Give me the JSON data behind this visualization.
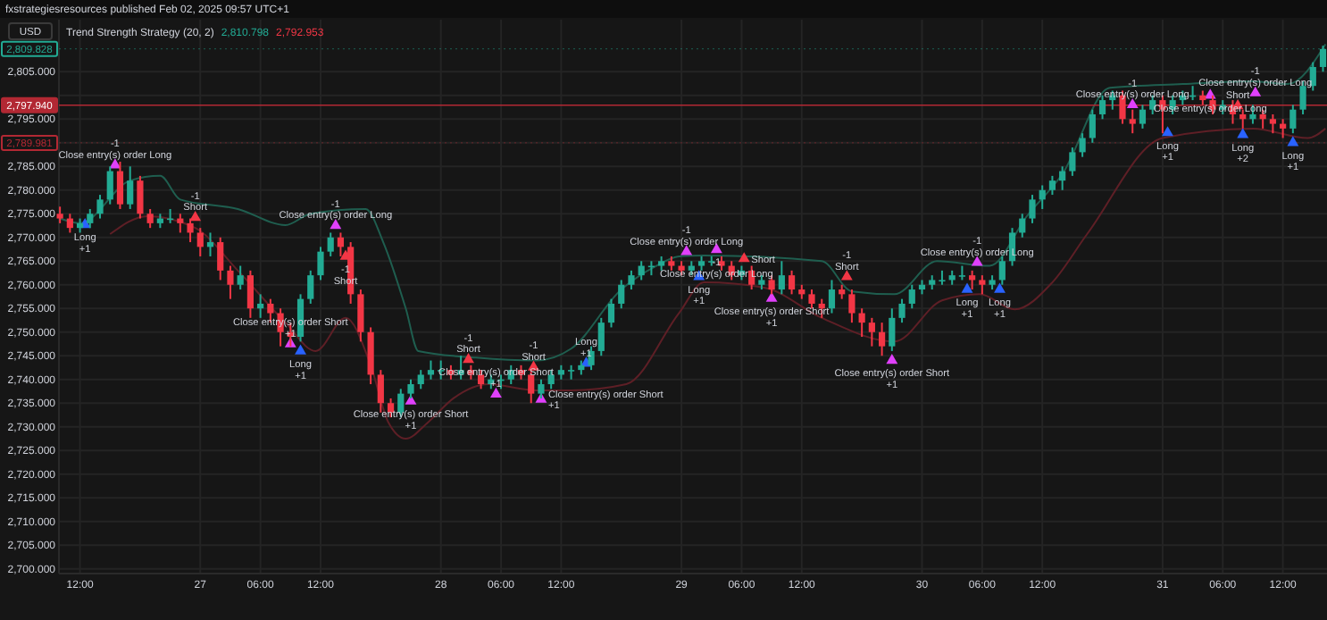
{
  "chart_data": {
    "type": "candlestick",
    "title": "fxstrategiesresources published Feb 02, 2025 09:57 UTC+1",
    "subtitle": "Trend Strength Strategy (20, 2)",
    "ylabel": "USD",
    "x": [
      "2025-01-26T10:00",
      "2025-01-26T11:00",
      "2025-01-26T12:00",
      "2025-01-26T13:00",
      "2025-01-26T14:00",
      "2025-01-26T15:00",
      "2025-01-26T16:00",
      "2025-01-26T17:00",
      "2025-01-26T18:00",
      "2025-01-26T19:00",
      "2025-01-26T20:00",
      "2025-01-26T21:00",
      "2025-01-26T22:00",
      "2025-01-26T23:00",
      "2025-01-27T00:00",
      "2025-01-27T01:00",
      "2025-01-27T02:00",
      "2025-01-27T03:00",
      "2025-01-27T04:00",
      "2025-01-27T05:00",
      "2025-01-27T06:00",
      "2025-01-27T07:00",
      "2025-01-27T08:00",
      "2025-01-27T09:00",
      "2025-01-27T10:00",
      "2025-01-27T11:00",
      "2025-01-27T12:00",
      "2025-01-27T13:00",
      "2025-01-27T14:00",
      "2025-01-27T15:00",
      "2025-01-27T16:00",
      "2025-01-27T17:00",
      "2025-01-27T18:00",
      "2025-01-27T19:00",
      "2025-01-27T20:00",
      "2025-01-27T21:00",
      "2025-01-27T22:00",
      "2025-01-27T23:00",
      "2025-01-28T00:00",
      "2025-01-28T01:00",
      "2025-01-28T02:00",
      "2025-01-28T03:00",
      "2025-01-28T04:00",
      "2025-01-28T05:00",
      "2025-01-28T06:00",
      "2025-01-28T07:00",
      "2025-01-28T08:00",
      "2025-01-28T09:00",
      "2025-01-28T10:00",
      "2025-01-28T11:00",
      "2025-01-28T12:00",
      "2025-01-28T13:00",
      "2025-01-28T14:00",
      "2025-01-28T15:00",
      "2025-01-28T16:00",
      "2025-01-28T17:00",
      "2025-01-28T18:00",
      "2025-01-28T19:00",
      "2025-01-28T20:00",
      "2025-01-28T21:00",
      "2025-01-28T22:00",
      "2025-01-28T23:00",
      "2025-01-29T00:00",
      "2025-01-29T01:00",
      "2025-01-29T02:00",
      "2025-01-29T03:00",
      "2025-01-29T04:00",
      "2025-01-29T05:00",
      "2025-01-29T06:00",
      "2025-01-29T07:00",
      "2025-01-29T08:00",
      "2025-01-29T09:00",
      "2025-01-29T10:00",
      "2025-01-29T11:00",
      "2025-01-29T12:00",
      "2025-01-29T13:00",
      "2025-01-29T14:00",
      "2025-01-29T15:00",
      "2025-01-29T16:00",
      "2025-01-29T17:00",
      "2025-01-29T18:00",
      "2025-01-29T19:00",
      "2025-01-29T20:00",
      "2025-01-29T21:00",
      "2025-01-29T22:00",
      "2025-01-29T23:00",
      "2025-01-30T00:00",
      "2025-01-30T01:00",
      "2025-01-30T02:00",
      "2025-01-30T03:00",
      "2025-01-30T04:00",
      "2025-01-30T05:00",
      "2025-01-30T06:00",
      "2025-01-30T07:00",
      "2025-01-30T08:00",
      "2025-01-30T09:00",
      "2025-01-30T10:00",
      "2025-01-30T11:00",
      "2025-01-30T12:00",
      "2025-01-30T13:00",
      "2025-01-30T14:00",
      "2025-01-30T15:00",
      "2025-01-30T16:00",
      "2025-01-30T17:00",
      "2025-01-30T18:00",
      "2025-01-30T19:00",
      "2025-01-30T20:00",
      "2025-01-30T21:00",
      "2025-01-30T22:00",
      "2025-01-30T23:00",
      "2025-01-31T00:00",
      "2025-01-31T01:00",
      "2025-01-31T02:00",
      "2025-01-31T03:00",
      "2025-01-31T04:00",
      "2025-01-31T05:00",
      "2025-01-31T06:00",
      "2025-01-31T07:00",
      "2025-01-31T08:00",
      "2025-01-31T09:00",
      "2025-01-31T10:00",
      "2025-01-31T11:00",
      "2025-01-31T12:00",
      "2025-01-31T13:00",
      "2025-01-31T14:00",
      "2025-01-31T15:00",
      "2025-01-31T16:00"
    ],
    "ohlc": [
      [
        2775,
        2776.5,
        2773,
        2774
      ],
      [
        2774,
        2775,
        2771,
        2772
      ],
      [
        2772,
        2774,
        2771,
        2773
      ],
      [
        2773,
        2776,
        2772,
        2775
      ],
      [
        2775,
        2779,
        2774,
        2778
      ],
      [
        2778,
        2785,
        2777,
        2784
      ],
      [
        2784,
        2786,
        2776,
        2777
      ],
      [
        2777,
        2785,
        2776,
        2782
      ],
      [
        2782,
        2783,
        2774,
        2775
      ],
      [
        2775,
        2776,
        2772,
        2773
      ],
      [
        2773,
        2775,
        2772,
        2774
      ],
      [
        2774,
        2776,
        2773,
        2774
      ],
      [
        2774,
        2775,
        2771,
        2773
      ],
      [
        2773,
        2774,
        2769,
        2771
      ],
      [
        2771,
        2772,
        2766,
        2768
      ],
      [
        2768,
        2771,
        2766,
        2769
      ],
      [
        2769,
        2770,
        2761,
        2763
      ],
      [
        2763,
        2764,
        2757,
        2760
      ],
      [
        2760,
        2764,
        2759,
        2762
      ],
      [
        2762,
        2763,
        2753,
        2755
      ],
      [
        2755,
        2758,
        2753,
        2756
      ],
      [
        2756,
        2757,
        2752,
        2754
      ],
      [
        2754,
        2755,
        2747,
        2750
      ],
      [
        2750,
        2752,
        2747,
        2749
      ],
      [
        2749,
        2758,
        2748,
        2757
      ],
      [
        2757,
        2763,
        2756,
        2762
      ],
      [
        2762,
        2768,
        2761,
        2767
      ],
      [
        2767,
        2771,
        2766,
        2770
      ],
      [
        2770,
        2771,
        2766,
        2768
      ],
      [
        2768,
        2769,
        2756,
        2758
      ],
      [
        2758,
        2759,
        2748,
        2750
      ],
      [
        2750,
        2751,
        2739,
        2741
      ],
      [
        2741,
        2742,
        2733,
        2735
      ],
      [
        2735,
        2736,
        2732,
        2733
      ],
      [
        2733,
        2738,
        2732,
        2737
      ],
      [
        2737,
        2740,
        2736,
        2739
      ],
      [
        2739,
        2742,
        2738,
        2741
      ],
      [
        2741,
        2744,
        2740,
        2742
      ],
      [
        2742,
        2744,
        2740,
        2742
      ],
      [
        2742,
        2743,
        2740,
        2741
      ],
      [
        2741,
        2745,
        2740,
        2742
      ],
      [
        2742,
        2743,
        2740,
        2741
      ],
      [
        2741,
        2742,
        2738,
        2739
      ],
      [
        2739,
        2741,
        2738,
        2740
      ],
      [
        2740,
        2741,
        2738,
        2740
      ],
      [
        2740,
        2743,
        2739,
        2742
      ],
      [
        2742,
        2743,
        2740,
        2741
      ],
      [
        2741,
        2742,
        2735,
        2737
      ],
      [
        2737,
        2740,
        2736,
        2739
      ],
      [
        2739,
        2742,
        2738,
        2741
      ],
      [
        2741,
        2743,
        2740,
        2742
      ],
      [
        2742,
        2743,
        2740,
        2742
      ],
      [
        2742,
        2744,
        2741,
        2743
      ],
      [
        2743,
        2747,
        2742,
        2746
      ],
      [
        2746,
        2753,
        2745,
        2752
      ],
      [
        2752,
        2757,
        2751,
        2756
      ],
      [
        2756,
        2761,
        2755,
        2760
      ],
      [
        2760,
        2763,
        2759,
        2762
      ],
      [
        2762,
        2765,
        2761,
        2764
      ],
      [
        2764,
        2765,
        2762,
        2764
      ],
      [
        2764,
        2766,
        2763,
        2765
      ],
      [
        2765,
        2766,
        2763,
        2764
      ],
      [
        2764,
        2765,
        2762,
        2763
      ],
      [
        2763,
        2765,
        2762,
        2764
      ],
      [
        2764,
        2766,
        2763,
        2765
      ],
      [
        2765,
        2766,
        2764,
        2765
      ],
      [
        2765,
        2766,
        2763,
        2764
      ],
      [
        2764,
        2765,
        2761,
        2762
      ],
      [
        2762,
        2764,
        2761,
        2763
      ],
      [
        2763,
        2764,
        2759,
        2760
      ],
      [
        2760,
        2762,
        2759,
        2761
      ],
      [
        2761,
        2762,
        2758,
        2759
      ],
      [
        2759,
        2765,
        2758,
        2762
      ],
      [
        2762,
        2763,
        2758,
        2759
      ],
      [
        2759,
        2760,
        2757,
        2758
      ],
      [
        2758,
        2759,
        2755,
        2756
      ],
      [
        2756,
        2757,
        2753,
        2755
      ],
      [
        2755,
        2761,
        2754,
        2759
      ],
      [
        2759,
        2760,
        2757,
        2758
      ],
      [
        2758,
        2759,
        2752,
        2754
      ],
      [
        2754,
        2755,
        2749,
        2752
      ],
      [
        2752,
        2753,
        2747,
        2750
      ],
      [
        2750,
        2752,
        2745,
        2747
      ],
      [
        2747,
        2755,
        2746,
        2753
      ],
      [
        2753,
        2757,
        2752,
        2756
      ],
      [
        2756,
        2760,
        2755,
        2759
      ],
      [
        2759,
        2761,
        2758,
        2760
      ],
      [
        2760,
        2762,
        2759,
        2761
      ],
      [
        2761,
        2763,
        2760,
        2761
      ],
      [
        2761,
        2763,
        2760,
        2762
      ],
      [
        2762,
        2764,
        2761,
        2762
      ],
      [
        2762,
        2763,
        2759,
        2761
      ],
      [
        2761,
        2762,
        2758,
        2760
      ],
      [
        2760,
        2762,
        2759,
        2761
      ],
      [
        2761,
        2766,
        2760,
        2765
      ],
      [
        2765,
        2772,
        2764,
        2771
      ],
      [
        2771,
        2775,
        2770,
        2774
      ],
      [
        2774,
        2779,
        2773,
        2778
      ],
      [
        2778,
        2781,
        2776,
        2780
      ],
      [
        2780,
        2783,
        2779,
        2782
      ],
      [
        2782,
        2785,
        2780,
        2784
      ],
      [
        2784,
        2789,
        2783,
        2788
      ],
      [
        2788,
        2792,
        2787,
        2791
      ],
      [
        2791,
        2797,
        2790,
        2796
      ],
      [
        2796,
        2800,
        2795,
        2799
      ],
      [
        2799,
        2801,
        2797,
        2800
      ],
      [
        2800,
        2801,
        2794,
        2795
      ],
      [
        2795,
        2797,
        2792,
        2794
      ],
      [
        2794,
        2798,
        2793,
        2797
      ],
      [
        2797,
        2800,
        2796,
        2799
      ],
      [
        2799,
        2800,
        2792,
        2797
      ],
      [
        2797,
        2800,
        2796,
        2799
      ],
      [
        2799,
        2801,
        2798,
        2800
      ],
      [
        2800,
        2802,
        2799,
        2800
      ],
      [
        2800,
        2801,
        2798,
        2799
      ],
      [
        2799,
        2800,
        2796,
        2797
      ],
      [
        2797,
        2799,
        2796,
        2798
      ],
      [
        2798,
        2799,
        2794,
        2796
      ],
      [
        2796,
        2797,
        2793,
        2795
      ],
      [
        2795,
        2798,
        2794,
        2796
      ],
      [
        2796,
        2797,
        2793,
        2795
      ],
      [
        2795,
        2796,
        2792,
        2794
      ],
      [
        2794,
        2795,
        2791,
        2793
      ],
      [
        2793,
        2798,
        2792,
        2797
      ],
      [
        2797,
        2803,
        2796,
        2802
      ],
      [
        2802,
        2807,
        2801,
        2806
      ],
      [
        2806,
        2810.5,
        2805,
        2809.8
      ]
    ],
    "series": [
      {
        "type": "line",
        "color": "#1f5e4f",
        "x": [
          "2025-01-26T10:00",
          "2025-01-26T12:00",
          "2025-01-26T17:00",
          "2025-01-26T20:00",
          "2025-01-26T22:00",
          "2025-01-27T03:45",
          "2025-01-27T08:30",
          "2025-01-27T11:00",
          "2025-01-27T16:30",
          "2025-01-27T18:15",
          "2025-01-27T20:30",
          "2025-01-27T21:45",
          "2025-01-28T03:30",
          "2025-01-28T09:30",
          "2025-01-28T13:00",
          "2025-01-28T18:00",
          "2025-01-28T21:30",
          "2025-01-28T23:45",
          "2025-01-29T02:15",
          "2025-01-29T14:00",
          "2025-01-29T17:00",
          "2025-01-29T21:15",
          "2025-01-30T01:30",
          "2025-01-30T06:45",
          "2025-01-30T10:30",
          "2025-01-30T14:00",
          "2025-01-30T18:45",
          "2025-01-31T02:00",
          "2025-01-31T09:00",
          "2025-01-31T12:30",
          "2025-01-31T16:15"
        ],
        "values": [
          2774,
          2773,
          2782,
          2783,
          2778,
          2776,
          2772.6,
          2775,
          2776,
          2769,
          2755,
          2746,
          2744.6,
          2744,
          2746.5,
          2759,
          2764,
          2766,
          2766.2,
          2765,
          2758.6,
          2758,
          2765,
          2764,
          2774.6,
          2783.4,
          2801.6,
          2802.4,
          2803,
          2802.4,
          2810.8
        ]
      },
      {
        "type": "line",
        "color": "#5e1f26",
        "x": [
          "2025-01-26T15:00",
          "2025-01-26T18:45",
          "2025-01-26T23:30",
          "2025-01-27T03:45",
          "2025-01-27T08:30",
          "2025-01-27T11:30",
          "2025-01-27T14:30",
          "2025-01-27T17:00",
          "2025-01-27T18:45",
          "2025-01-27T20:30",
          "2025-01-27T22:45",
          "2025-01-28T01:15",
          "2025-01-28T04:45",
          "2025-01-28T09:30",
          "2025-01-28T13:00",
          "2025-01-28T18:30",
          "2025-01-28T23:45",
          "2025-01-29T02:15",
          "2025-01-29T08:15",
          "2025-01-29T14:00",
          "2025-01-29T21:15",
          "2025-01-30T02:00",
          "2025-01-30T05:45",
          "2025-01-30T09:15",
          "2025-01-30T13:00",
          "2025-01-30T16:30",
          "2025-01-31T00:00",
          "2025-01-31T09:00",
          "2025-01-31T14:30",
          "2025-01-31T16:15"
        ],
        "values": [
          2770.7,
          2774.5,
          2772,
          2763,
          2752,
          2746,
          2753,
          2743,
          2731,
          2727.5,
          2731,
          2736,
          2739,
          2737.7,
          2737.7,
          2739,
          2754,
          2760.5,
          2759.4,
          2753,
          2748,
          2756.7,
          2758,
          2754.8,
          2760.5,
          2770.8,
          2791,
          2793,
          2791,
          2793
        ]
      },
      {
        "type": "scatter",
        "color": "#2962ff",
        "marker": "triangle",
        "x": [
          "2025-01-26T12:30",
          "2025-01-27T10:00",
          "2025-01-28T14:30",
          "2025-01-29T01:45",
          "2025-01-30T04:30",
          "2025-01-30T07:45",
          "2025-01-31T00:30",
          "2025-01-31T08:00",
          "2025-01-31T13:00"
        ],
        "values": [
          2772.7,
          2746,
          2743.4,
          2761.7,
          2759,
          2759,
          2792.1,
          2791.7,
          2790
        ]
      },
      {
        "type": "scatter",
        "color": "#f23645",
        "marker": "triangle",
        "x": [
          "2025-01-26T23:30",
          "2025-01-27T14:30",
          "2025-01-28T02:45",
          "2025-01-28T09:15",
          "2025-01-29T06:15",
          "2025-01-29T16:30",
          "2025-01-31T07:30"
        ],
        "values": [
          2774.2,
          2766,
          2744.2,
          2742.6,
          2765.5,
          2761.7,
          2797.8
        ]
      },
      {
        "type": "scatter",
        "color": "#e040fb",
        "marker": "triangle",
        "x": [
          "2025-01-26T15:30",
          "2025-01-27T13:30",
          "2025-01-27T09:00",
          "2025-01-27T21:00",
          "2025-01-28T05:30",
          "2025-01-28T10:00",
          "2025-01-29T00:30",
          "2025-01-29T03:30",
          "2025-01-29T09:00",
          "2025-01-29T21:00",
          "2025-01-30T05:30",
          "2025-01-30T21:00",
          "2025-01-31T04:45",
          "2025-01-31T09:15"
        ],
        "values": [
          2785.3,
          2772.5,
          2747.5,
          2735.4,
          2736.9,
          2735.8,
          2767,
          2767.4,
          2757.1,
          2744,
          2764.7,
          2798,
          2800,
          2800.5
        ]
      }
    ],
    "xlim": [
      "2025-01-26T09:54",
      "2025-01-31T16:24"
    ],
    "xticks": [
      {
        "value": "2025-01-26T12:00",
        "label": "12:00"
      },
      {
        "value": "2025-01-27",
        "label": "27"
      },
      {
        "value": "2025-01-27T06:00",
        "label": "06:00"
      },
      {
        "value": "2025-01-27T12:00",
        "label": "12:00"
      },
      {
        "value": "2025-01-28",
        "label": "28"
      },
      {
        "value": "2025-01-28T06:00",
        "label": "06:00"
      },
      {
        "value": "2025-01-28T12:00",
        "label": "12:00"
      },
      {
        "value": "2025-01-29",
        "label": "29"
      },
      {
        "value": "2025-01-29T06:00",
        "label": "06:00"
      },
      {
        "value": "2025-01-29T12:00",
        "label": "12:00"
      },
      {
        "value": "2025-01-30",
        "label": "30"
      },
      {
        "value": "2025-01-30T06:00",
        "label": "06:00"
      },
      {
        "value": "2025-01-30T12:00",
        "label": "12:00"
      },
      {
        "value": "2025-01-31",
        "label": "31"
      },
      {
        "value": "2025-01-31T06:00",
        "label": "06:00"
      },
      {
        "value": "2025-01-31T12:00",
        "label": "12:00"
      }
    ],
    "ylim": [
      2699,
      2816
    ],
    "yticks": [
      {
        "value": 2700,
        "label": "2,700.000"
      },
      {
        "value": 2705,
        "label": "2,705.000"
      },
      {
        "value": 2710,
        "label": "2,710.000"
      },
      {
        "value": 2715,
        "label": "2,715.000"
      },
      {
        "value": 2720,
        "label": "2,720.000"
      },
      {
        "value": 2725,
        "label": "2,725.000"
      },
      {
        "value": 2730,
        "label": "2,730.000"
      },
      {
        "value": 2735,
        "label": "2,735.000"
      },
      {
        "value": 2740,
        "label": "2,740.000"
      },
      {
        "value": 2745,
        "label": "2,745.000"
      },
      {
        "value": 2750,
        "label": "2,750.000"
      },
      {
        "value": 2755,
        "label": "2,755.000"
      },
      {
        "value": 2760,
        "label": "2,760.000"
      },
      {
        "value": 2765,
        "label": "2,765.000"
      },
      {
        "value": 2770,
        "label": "2,770.000"
      },
      {
        "value": 2775,
        "label": "2,775.000"
      },
      {
        "value": 2780,
        "label": "2,780.000"
      },
      {
        "value": 2785,
        "label": "2,785.000"
      },
      {
        "value": 2790,
        "label": null
      },
      {
        "value": 2795,
        "label": "2,795.000"
      },
      {
        "value": 2800,
        "label": null
      },
      {
        "value": 2805,
        "label": "2,805.000"
      }
    ],
    "grid": true,
    "ref_lines": [
      {
        "axis": "y",
        "value": 2809.828,
        "label": "2,809.828",
        "color": "#22ab94",
        "line_style": "dotted"
      },
      {
        "axis": "y",
        "value": 2797.94,
        "label": "2,797.940",
        "color": "#b22833",
        "line_style": "solid"
      },
      {
        "axis": "y",
        "value": 2789.981,
        "label": "2,789.981",
        "color": "#b22833",
        "line_style": "dotted"
      }
    ],
    "annotations": [
      "2,810.798",
      "2,792.953",
      {
        "text": "-1",
        "x": "2025-01-26T15:30",
        "y": 2785.3
      },
      {
        "text": "Close entry(s) order Long",
        "x": "2025-01-26T15:30",
        "y": 2785.3
      },
      {
        "text": "Long",
        "x": "2025-01-26T12:30",
        "y": 2772.7
      },
      {
        "text": "+1",
        "x": "2025-01-26T12:30",
        "y": 2772.7
      },
      {
        "text": "-1",
        "x": "2025-01-26T23:30",
        "y": 2774.2
      },
      {
        "text": "Short",
        "x": "2025-01-26T23:30",
        "y": 2774.2
      },
      {
        "text": "-1",
        "x": "2025-01-27T13:30",
        "y": 2772.5
      },
      {
        "text": "Close entry(s) order Long",
        "x": "2025-01-27T13:30",
        "y": 2772.5
      },
      {
        "text": "-1",
        "x": "2025-01-27T14:30",
        "y": 2766
      },
      {
        "text": "Short",
        "x": "2025-01-27T14:30",
        "y": 2766
      },
      {
        "text": "Long",
        "x": "2025-01-27T10:00",
        "y": 2746
      },
      {
        "text": "+1",
        "x": "2025-01-27T10:00",
        "y": 2746
      },
      {
        "text": "Close entry(s) order Short",
        "x": "2025-01-27T09:00",
        "y": 2747.5
      },
      {
        "text": "+1",
        "x": "2025-01-27T09:00",
        "y": 2747.5
      },
      {
        "text": "Close entry(s) order Short",
        "x": "2025-01-27T21:00",
        "y": 2735.4
      },
      {
        "text": "+1",
        "x": "2025-01-27T21:00",
        "y": 2735.4
      },
      {
        "text": "-1",
        "x": "2025-01-28T02:45",
        "y": 2744.2
      },
      {
        "text": "Short",
        "x": "2025-01-28T02:45",
        "y": 2744.2
      },
      {
        "text": "Close entry(s) order Short",
        "x": "2025-01-28T05:30",
        "y": 2736.9
      },
      {
        "text": "+1",
        "x": "2025-01-28T05:30",
        "y": 2736.9
      },
      {
        "text": "-1",
        "x": "2025-01-28T09:15",
        "y": 2742.6
      },
      {
        "text": "Short",
        "x": "2025-01-28T09:15",
        "y": 2742.6
      },
      {
        "text": "Close entry(s) order Short",
        "x": "2025-01-28T10:00",
        "y": 2735.8
      },
      {
        "text": "+1",
        "x": "2025-01-28T10:00",
        "y": 2735.8
      },
      {
        "text": "Long",
        "x": "2025-01-28T14:30",
        "y": 2743.4
      },
      {
        "text": "+1",
        "x": "2025-01-28T14:30",
        "y": 2743.4
      },
      {
        "text": "-1",
        "x": "2025-01-29T00:30",
        "y": 2767
      },
      {
        "text": "Close entry(s) order Long",
        "x": "2025-01-29T00:30",
        "y": 2767
      },
      {
        "text": "-1",
        "x": "2025-01-29T03:30",
        "y": 2767.4
      },
      {
        "text": "Close entry(s) order Long",
        "x": "2025-01-29T03:30",
        "y": 2767.4
      },
      {
        "text": "Short",
        "x": "2025-01-29T06:15",
        "y": 2765.5
      },
      {
        "text": "Long",
        "x": "2025-01-29T01:45",
        "y": 2761.7
      },
      {
        "text": "+1",
        "x": "2025-01-29T01:45",
        "y": 2761.7
      },
      {
        "text": "Close entry(s) order Short",
        "x": "2025-01-29T09:00",
        "y": 2757.1
      },
      {
        "text": "+1",
        "x": "2025-01-29T09:00",
        "y": 2757.1
      },
      {
        "text": "-1",
        "x": "2025-01-29T16:30",
        "y": 2761.7
      },
      {
        "text": "Short",
        "x": "2025-01-29T16:30",
        "y": 2761.7
      },
      {
        "text": "Close entry(s) order Short",
        "x": "2025-01-29T21:00",
        "y": 2744
      },
      {
        "text": "+1",
        "x": "2025-01-29T21:00",
        "y": 2744
      },
      {
        "text": "-1",
        "x": "2025-01-30T05:30",
        "y": 2764.7
      },
      {
        "text": "Close entry(s) order Long",
        "x": "2025-01-30T05:30",
        "y": 2764.7
      },
      {
        "text": "Long",
        "x": "2025-01-30T04:30",
        "y": 2759
      },
      {
        "text": "+1",
        "x": "2025-01-30T04:30",
        "y": 2759
      },
      {
        "text": "Long",
        "x": "2025-01-30T07:45",
        "y": 2759
      },
      {
        "text": "+1",
        "x": "2025-01-30T07:45",
        "y": 2759
      },
      {
        "text": "-1",
        "x": "2025-01-30T21:00",
        "y": 2798
      },
      {
        "text": "Close entry(s) order Long",
        "x": "2025-01-30T21:00",
        "y": 2798
      },
      {
        "text": "Long",
        "x": "2025-01-31T00:30",
        "y": 2792.1
      },
      {
        "text": "+1",
        "x": "2025-01-31T00:30",
        "y": 2792.1
      },
      {
        "text": "Close entry(s) order Long",
        "x": "2025-01-31T04:45",
        "y": 2800
      },
      {
        "text": "-1",
        "x": "2025-01-31T09:15",
        "y": 2800.5
      },
      {
        "text": "Close entry(s) order Long",
        "x": "2025-01-31T09:15",
        "y": 2800.5
      },
      {
        "text": "Short",
        "x": "2025-01-31T07:30",
        "y": 2797.8
      },
      {
        "text": "Long",
        "x": "2025-01-31T08:00",
        "y": 2791.7
      },
      {
        "text": "+2",
        "x": "2025-01-31T08:00",
        "y": 2791.7
      },
      {
        "text": "Long",
        "x": "2025-01-31T13:00",
        "y": 2790
      },
      {
        "text": "+1",
        "x": "2025-01-31T13:00",
        "y": 2790
      }
    ]
  }
}
